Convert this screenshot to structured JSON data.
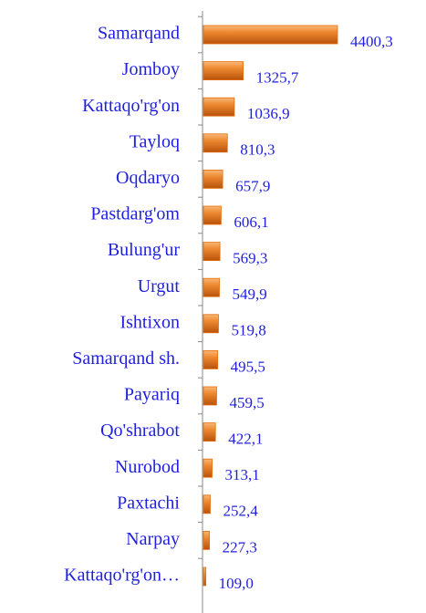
{
  "chart_data": {
    "type": "bar",
    "orientation": "horizontal",
    "categories": [
      "Samarqand",
      "Jomboy",
      "Kattaqo'rg'on",
      "Tayloq",
      "Oqdaryo",
      "Pastdarg'om",
      "Bulung'ur",
      "Urgut",
      "Ishtixon",
      "Samarqand sh.",
      "Payariq",
      "Qo'shrabot",
      "Nurobod",
      "Paxtachi",
      "Narpay",
      "Kattaqo'rg'on…"
    ],
    "values": [
      4400.3,
      1325.7,
      1036.9,
      810.3,
      657.9,
      606.1,
      569.3,
      549.9,
      519.8,
      495.5,
      459.5,
      422.1,
      313.1,
      252.4,
      227.3,
      109.0
    ],
    "value_labels": [
      "4400,3",
      "1325,7",
      "1036,9",
      "810,3",
      "657,9",
      "606,1",
      "569,3",
      "549,9",
      "519,8",
      "495,5",
      "459,5",
      "422,1",
      "313,1",
      "252,4",
      "227,3",
      "109,0"
    ],
    "color": "#e46c0a"
  }
}
